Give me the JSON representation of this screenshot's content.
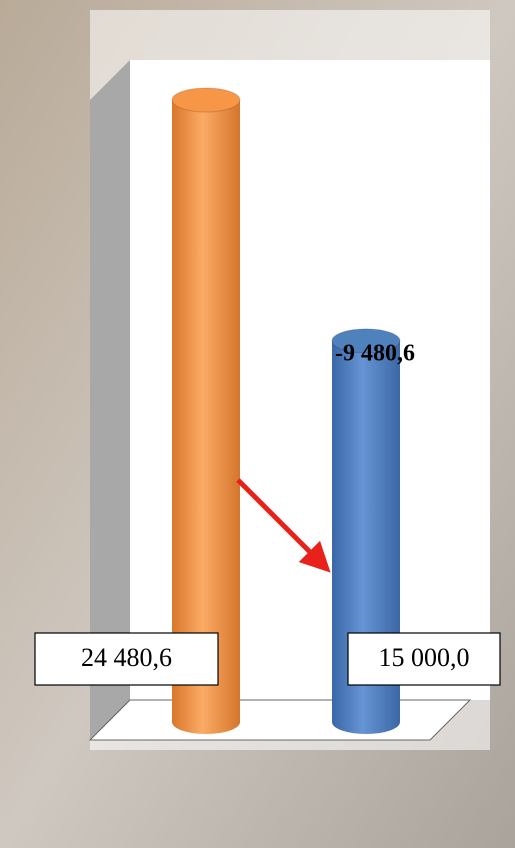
{
  "chart_data": {
    "type": "bar",
    "categories": [
      null,
      null
    ],
    "values": [
      24480.6,
      15000.0
    ],
    "value_labels": [
      "24 480,6",
      "15 000,0"
    ],
    "colors": [
      "#f79646",
      "#4f81bd"
    ],
    "annotation": "-9 480,6"
  }
}
